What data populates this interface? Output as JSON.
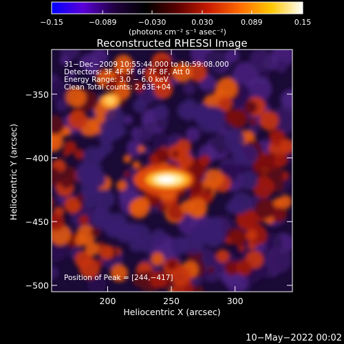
{
  "colorbar": {
    "tick_labels": [
      "−0.15",
      "−0.089",
      "−0.030",
      "0.030",
      "0.089",
      "0.15"
    ],
    "tick_values": [
      -0.15,
      -0.089,
      -0.03,
      0.03,
      0.089,
      0.15
    ],
    "range": [
      -0.15,
      0.15
    ],
    "unit_label": "(photons cm⁻² s⁻¹ asec⁻²)",
    "stops": [
      "#0000ff",
      "#5b00d8",
      "#200040",
      "#000000",
      "#5a0000",
      "#c81c00",
      "#ff6a00",
      "#ffc800",
      "#ffffff"
    ]
  },
  "chart_data": {
    "type": "heatmap",
    "title": "Reconstructed RHESSI Image",
    "xlabel": "Heliocentric X (arcsec)",
    "ylabel": "Heliocentric Y (arcsec)",
    "xlim": [
      156,
      345
    ],
    "ylim": [
      -505,
      -315
    ],
    "x_ticks": [
      200,
      250,
      300
    ],
    "y_ticks": [
      -350,
      -400,
      -450,
      -500
    ],
    "x_tick_labels": [
      "200",
      "250",
      "300"
    ],
    "y_tick_labels": [
      "−350",
      "−400",
      "−450",
      "−500"
    ],
    "info_lines": [
      "31−Dec−2009 10:55:44.000 to 10:59:08.000",
      "Detectors: 3F 4F 5F 6F 7F 8F, Att 0",
      "Energy Range: 3.0 − 6.0 keV",
      "Clean     Total counts: 2.63E+04"
    ],
    "peak_label": "Position of Peak = [244,−417]",
    "peak": [
      244,
      -417
    ]
  },
  "footer": {
    "date": "10−May−2022 00:02"
  }
}
